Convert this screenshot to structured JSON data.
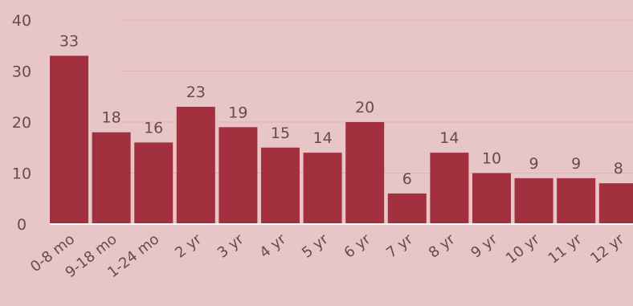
{
  "chart_data": {
    "type": "bar",
    "categories": [
      "0-8 mo",
      "9-18 mo",
      "1-24 mo",
      "2 yr",
      "3 yr",
      "4 yr",
      "5 yr",
      "6 yr",
      "7 yr",
      "8 yr",
      "9 yr",
      "10 yr",
      "11 yr",
      "12 yr"
    ],
    "values": [
      33,
      18,
      16,
      23,
      19,
      15,
      14,
      20,
      6,
      14,
      10,
      9,
      9,
      8
    ],
    "yticks": [
      0,
      10,
      20,
      30,
      40
    ],
    "ylim": [
      0,
      40
    ],
    "grid": true,
    "colors": {
      "bar": "#a3303f",
      "background": "#e8c5c7",
      "text": "#6a4a4c"
    }
  }
}
